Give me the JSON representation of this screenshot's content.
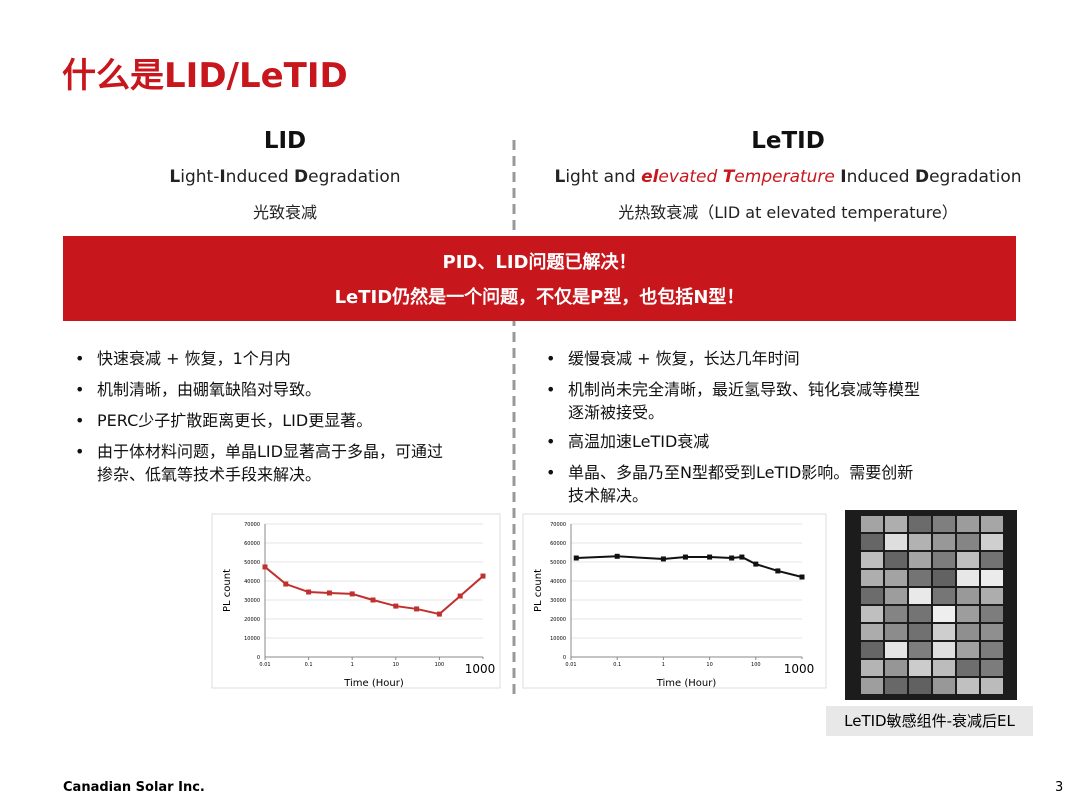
{
  "header": {
    "title": "什么是LID/LeTID"
  },
  "columns": [
    {
      "heading": "LID",
      "subtitle": [
        {
          "text": "L",
          "style": "bold"
        },
        {
          "text": "ight-"
        },
        {
          "text": "I",
          "style": "bold"
        },
        {
          "text": "nduced "
        },
        {
          "text": "D",
          "style": "bold"
        },
        {
          "text": "egradation"
        }
      ],
      "chinese": "光致衰减",
      "bullets": [
        [
          "快速衰减 + 恢复，1个月内"
        ],
        [
          "机制清晰，由硼氧缺陷对导致。"
        ],
        [
          "PERC少子扩散距离更长，LID更显著。"
        ],
        [
          "由于体材料问题，单晶LID显著高于多晶，可通过",
          "掺杂、低氧等技术手段来解决。"
        ]
      ]
    },
    {
      "heading": "LeTID",
      "subtitle": [
        {
          "text": "L",
          "style": "bold"
        },
        {
          "text": "ight and "
        },
        {
          "text": "el",
          "style": "accent-bold"
        },
        {
          "text": "evated ",
          "style": "accent"
        },
        {
          "text": "T",
          "style": "accent-bold"
        },
        {
          "text": "emperature",
          "style": "accent"
        },
        {
          "text": " "
        },
        {
          "text": "I",
          "style": "bold"
        },
        {
          "text": "nduced "
        },
        {
          "text": "D",
          "style": "bold"
        },
        {
          "text": "egradation"
        }
      ],
      "chinese": "光热致衰减（LID at elevated temperature）",
      "bullets": [
        [
          "缓慢衰减 + 恢复，长达几年时间"
        ],
        [
          "机制尚未完全清晰，最近氢导致、钝化衰减等模型",
          "逐渐被接受。"
        ],
        [
          "高温加速LeTID衰减"
        ],
        [
          "单晶、多晶乃至N型都受到LeTID影响。需要创新",
          "技术解决。"
        ]
      ]
    }
  ],
  "banner": [
    "PID、LID问题已解决！",
    "LeTID仍然是一个问题，不仅是P型，也包括N型！"
  ],
  "chart_data": [
    {
      "type": "line",
      "x_label": "Time (Hour)",
      "y_label": "PL count",
      "xscale": "log",
      "grid": true,
      "xlim": [
        0.01,
        1000
      ],
      "ylim": [
        0,
        70000
      ],
      "xticks": [
        0.01,
        0.1,
        1,
        10,
        100,
        1000
      ],
      "yticks": [
        0,
        10000,
        20000,
        30000,
        40000,
        50000,
        60000,
        70000
      ],
      "series": [
        {
          "color": "#c0302e",
          "x": [
            0.01,
            0.03,
            0.1,
            0.3,
            1,
            3,
            10,
            30,
            100,
            300,
            1000
          ],
          "values": [
            47400,
            38400,
            34200,
            33700,
            33200,
            30000,
            26800,
            25300,
            22600,
            32100,
            42600
          ]
        }
      ]
    },
    {
      "type": "line",
      "x_label": "Time (Hour)",
      "y_label": "PL count",
      "xscale": "log",
      "grid": true,
      "xlim": [
        0.01,
        1000
      ],
      "ylim": [
        0,
        70000
      ],
      "xticks": [
        0.01,
        0.1,
        1,
        10,
        100,
        1000
      ],
      "yticks": [
        0,
        10000,
        20000,
        30000,
        40000,
        50000,
        60000,
        70000
      ],
      "series": [
        {
          "color": "#111111",
          "x": [
            0.013,
            0.1,
            1,
            3,
            10,
            30,
            50,
            100,
            300,
            1000
          ],
          "values": [
            52100,
            53000,
            51600,
            52600,
            52600,
            52100,
            52600,
            48900,
            45300,
            42100
          ]
        }
      ]
    }
  ],
  "image_caption": "LeTID敏感组件-衰减后EL",
  "footer": {
    "company": "Canadian Solar Inc.",
    "page": 3
  }
}
